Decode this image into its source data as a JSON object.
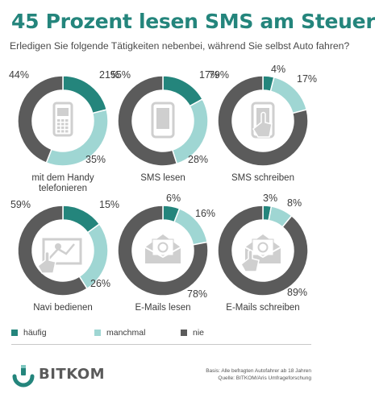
{
  "title": "45 Prozent lesen SMS am Steuer",
  "subtitle": "Erledigen Sie folgende Tätigkeiten nebenbei, während Sie selbst Auto fahren?",
  "colors": {
    "haeufig": "#24857c",
    "manchmal": "#9fd6d3",
    "nie": "#5b5b5b",
    "title": "#24857c",
    "icon": "#cfcfcf"
  },
  "legend": [
    {
      "label": "häufig",
      "color": "#24857c"
    },
    {
      "label": "manchmal",
      "color": "#9fd6d3"
    },
    {
      "label": "nie",
      "color": "#5b5b5b"
    }
  ],
  "chart_data": [
    {
      "type": "pie",
      "label": "mit dem Handy telefonieren",
      "icon": "phone-icon",
      "values": [
        21,
        35,
        44
      ],
      "value_labels": [
        "21%",
        "35%",
        "44%"
      ],
      "categories": [
        "häufig",
        "manchmal",
        "nie"
      ]
    },
    {
      "type": "pie",
      "label": "SMS lesen",
      "icon": "smartphone-icon",
      "values": [
        17,
        28,
        55
      ],
      "value_labels": [
        "17%",
        "28%",
        "55%"
      ],
      "categories": [
        "häufig",
        "manchmal",
        "nie"
      ]
    },
    {
      "type": "pie",
      "label": "SMS schreiben",
      "icon": "smartphone-hand-icon",
      "values": [
        4,
        17,
        79
      ],
      "value_labels": [
        "4%",
        "17%",
        "79%"
      ],
      "categories": [
        "häufig",
        "manchmal",
        "nie"
      ]
    },
    {
      "type": "pie",
      "label": "Navi bedienen",
      "icon": "navigation-icon",
      "values": [
        15,
        26,
        59
      ],
      "value_labels": [
        "15%",
        "26%",
        "59%"
      ],
      "categories": [
        "häufig",
        "manchmal",
        "nie"
      ]
    },
    {
      "type": "pie",
      "label": "E-Mails lesen",
      "icon": "open-envelope-icon",
      "values": [
        6,
        16,
        78
      ],
      "value_labels": [
        "6%",
        "16%",
        "78%"
      ],
      "categories": [
        "häufig",
        "manchmal",
        "nie"
      ]
    },
    {
      "type": "pie",
      "label": "E-Mails schreiben",
      "icon": "envelope-hand-icon",
      "values": [
        3,
        8,
        89
      ],
      "value_labels": [
        "3%",
        "8%",
        "89%"
      ],
      "categories": [
        "häufig",
        "manchmal",
        "nie"
      ]
    }
  ],
  "footer": {
    "logo_text": "BITKOM",
    "note_line1": "Basis: Alle befragten Autofahrer ab 18 Jahren",
    "note_line2": "Quelle: BITKOM/Aris Umfrageforschung"
  }
}
